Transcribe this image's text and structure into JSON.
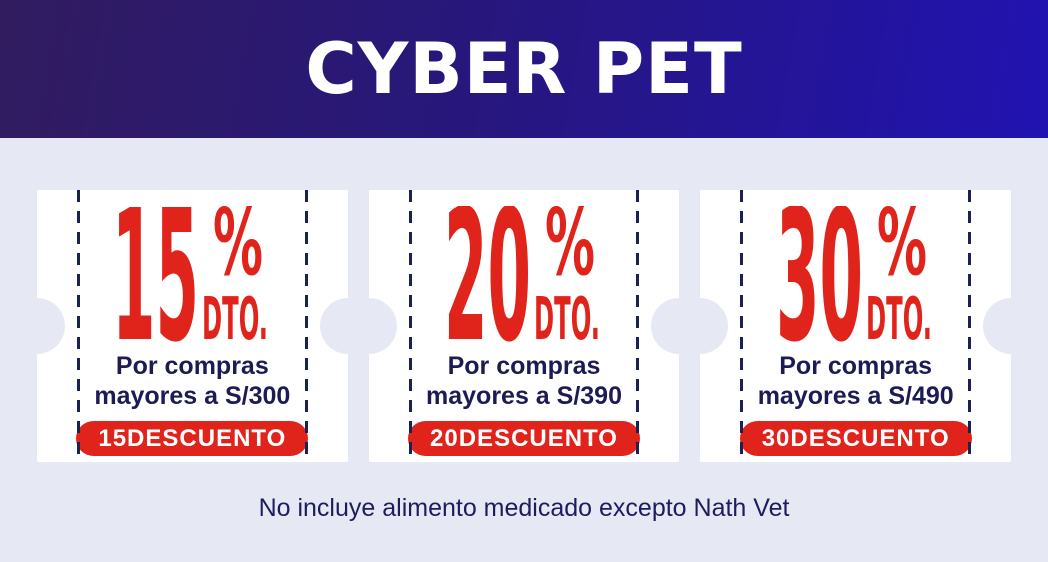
{
  "theme": {
    "accent_red": "#e0241b",
    "navy_text": "#1d1b54",
    "page_background": "#e6e9f3",
    "coupon_background": "#ffffff",
    "header_gradient_start": "#311c5f",
    "header_gradient_end": "#2113b1",
    "header_text": "#ffffff"
  },
  "header": {
    "title": "CYBER PET"
  },
  "labels": {
    "percent_sign": "%",
    "dto": "DTO."
  },
  "coupons": [
    {
      "percent": "15",
      "condition_line1": "Por compras",
      "condition_line2": "mayores a S/300",
      "code": "15DESCUENTO"
    },
    {
      "percent": "20",
      "condition_line1": "Por compras",
      "condition_line2": "mayores a S/390",
      "code": "20DESCUENTO"
    },
    {
      "percent": "30",
      "condition_line1": "Por compras",
      "condition_line2": "mayores a S/490",
      "code": "30DESCUENTO"
    }
  ],
  "footer": {
    "note": "No incluye alimento medicado excepto Nath Vet"
  }
}
